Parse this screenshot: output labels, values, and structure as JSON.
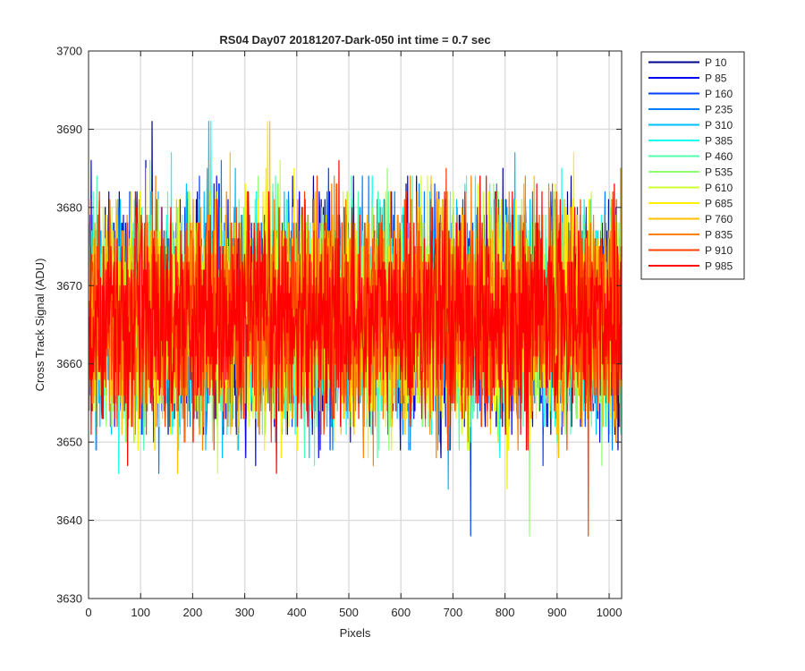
{
  "chart_data": {
    "type": "line",
    "title": "RS04 Day07 20181207-Dark-050 int time = 0.7 sec",
    "xlabel": "Pixels",
    "ylabel": "Cross Track Signal (ADU)",
    "xlim": [
      0,
      1024
    ],
    "ylim": [
      3630,
      3700
    ],
    "xticks": [
      0,
      100,
      200,
      300,
      400,
      500,
      600,
      700,
      800,
      900,
      1000
    ],
    "yticks": [
      3630,
      3640,
      3650,
      3660,
      3670,
      3680,
      3690,
      3700
    ],
    "grid": true,
    "legend_position": "outside-top-right",
    "x_range": [
      1,
      1024
    ],
    "signal_mean": 3666,
    "signal_noise_std": 6.5,
    "signal_min": 3638,
    "signal_max": 3694,
    "series": [
      {
        "name": "P 10",
        "color": "#00008f"
      },
      {
        "name": "P 85",
        "color": "#0000ef"
      },
      {
        "name": "P 160",
        "color": "#0040ff"
      },
      {
        "name": "P 235",
        "color": "#0080ff"
      },
      {
        "name": "P 310",
        "color": "#00bfff"
      },
      {
        "name": "P 385",
        "color": "#10ffef"
      },
      {
        "name": "P 460",
        "color": "#50ffaf"
      },
      {
        "name": "P 535",
        "color": "#8fff70"
      },
      {
        "name": "P 610",
        "color": "#cfff30"
      },
      {
        "name": "P 685",
        "color": "#ffef00"
      },
      {
        "name": "P 760",
        "color": "#ffbf00"
      },
      {
        "name": "P 835",
        "color": "#ff8000"
      },
      {
        "name": "P 910",
        "color": "#ff4000"
      },
      {
        "name": "P 985",
        "color": "#ff0000"
      }
    ]
  }
}
